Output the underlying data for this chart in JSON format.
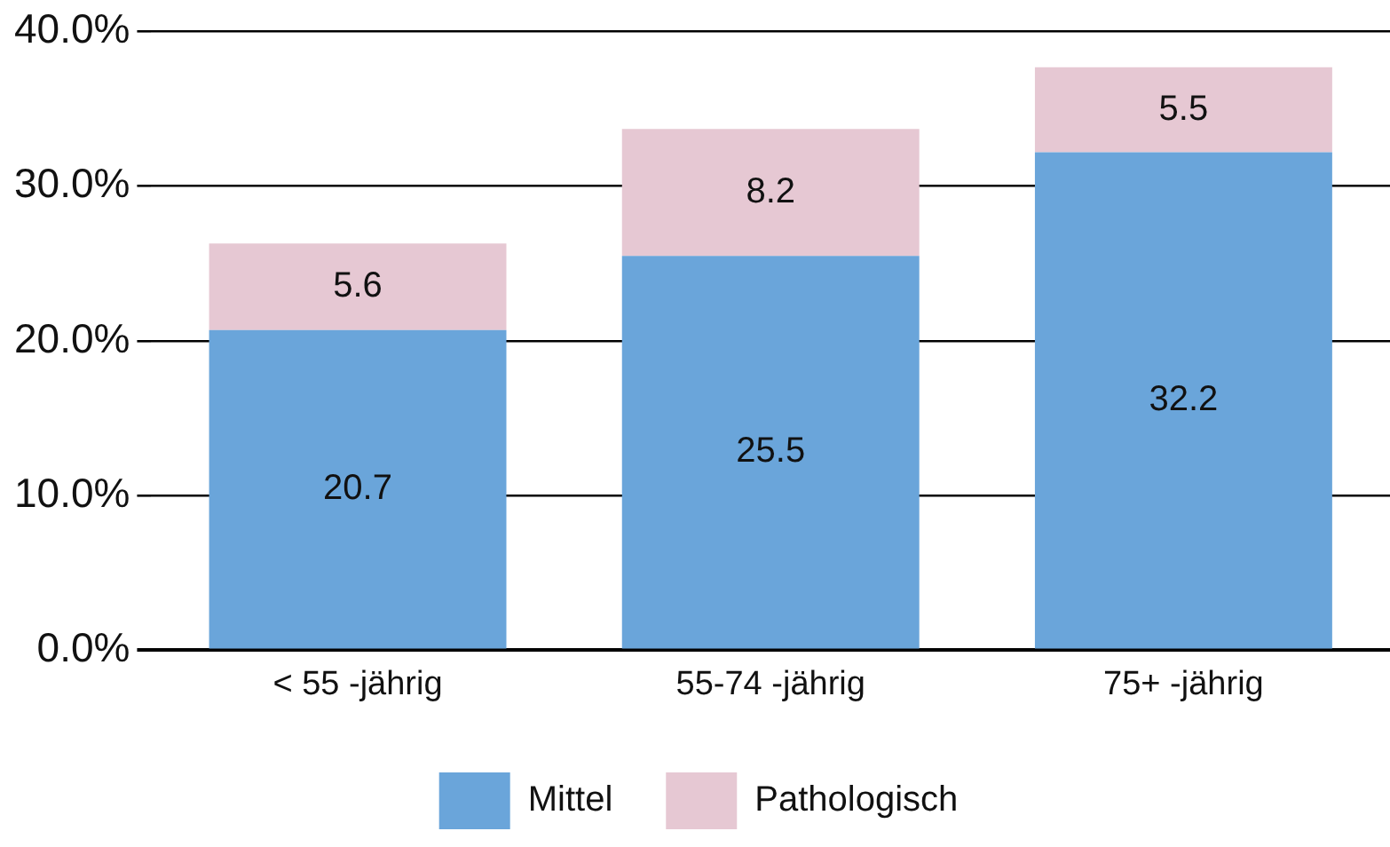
{
  "chart_data": {
    "type": "bar",
    "stacked": true,
    "categories": [
      "< 55 -jährig",
      "55-74 -jährig",
      "75+ -jährig"
    ],
    "series": [
      {
        "name": "Mittel",
        "color": "#6aa5da",
        "values": [
          20.7,
          25.5,
          32.2
        ]
      },
      {
        "name": "Pathologisch",
        "color": "#e6c8d3",
        "values": [
          5.6,
          8.2,
          5.5
        ]
      }
    ],
    "ylim": [
      0,
      40
    ],
    "yticks": [
      {
        "value": 0,
        "label": "0.0%"
      },
      {
        "value": 10,
        "label": "10.0%"
      },
      {
        "value": 20,
        "label": "20.0%"
      },
      {
        "value": 30,
        "label": "30.0%"
      },
      {
        "value": 40,
        "label": "40.0%"
      }
    ],
    "grid": "y",
    "legend": "bottom",
    "data_labels": true
  }
}
